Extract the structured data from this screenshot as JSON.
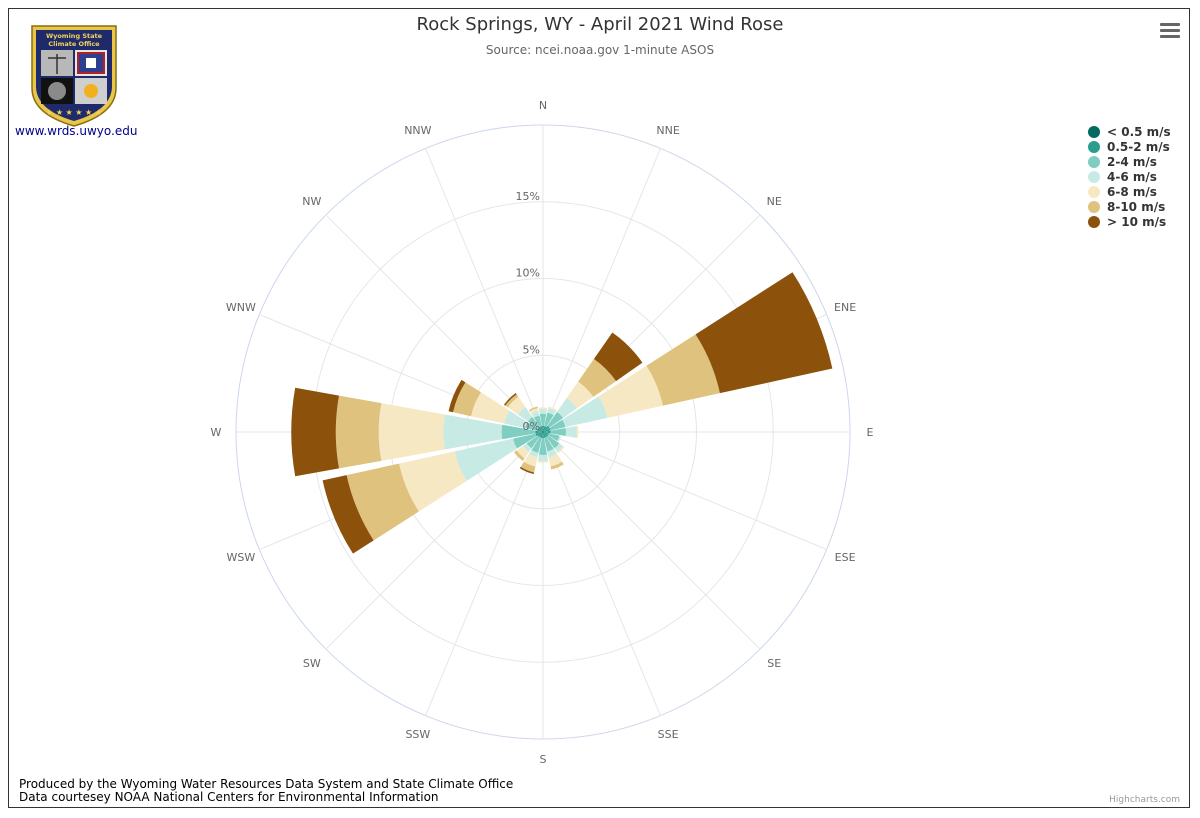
{
  "header": {
    "title": "Rock Springs, WY - April 2021 Wind Rose",
    "subtitle": "Source: ncei.noaa.gov 1-minute ASOS"
  },
  "logo": {
    "org_line1": "Wyoming State",
    "org_line2": "Climate Office",
    "link_text": "www.wrds.uwyo.edu"
  },
  "footer": {
    "line1": "Produced by the Wyoming Water Resources Data System and State Climate Office",
    "line2": "Data courtesey NOAA National Centers for Environmental Information",
    "credits": "Highcharts.com"
  },
  "menu": {
    "icon": "hamburger-menu-icon"
  },
  "chart_data": {
    "type": "bar",
    "polar": true,
    "stacked": true,
    "categories": [
      "N",
      "NNE",
      "NE",
      "ENE",
      "E",
      "ESE",
      "SE",
      "SSE",
      "S",
      "SSW",
      "SW",
      "WSW",
      "W",
      "WNW",
      "NW",
      "NNW"
    ],
    "y_ticks": [
      "0%",
      "5%",
      "10%",
      "15%"
    ],
    "ylim": [
      0,
      20
    ],
    "legend_position": "top-right",
    "series": [
      {
        "name": "< 0.5 m/s",
        "color": "#006b5e",
        "values": [
          0.1,
          0.1,
          0.1,
          0.1,
          0.1,
          0.1,
          0.1,
          0.1,
          0.1,
          0.1,
          0.1,
          0.1,
          0.1,
          0.1,
          0.1,
          0.1
        ]
      },
      {
        "name": "0.5-2 m/s",
        "color": "#2a9d8f",
        "values": [
          0.3,
          0.3,
          0.4,
          0.4,
          0.4,
          0.3,
          0.3,
          0.3,
          0.3,
          0.3,
          0.3,
          0.4,
          0.4,
          0.3,
          0.3,
          0.3
        ]
      },
      {
        "name": "2-4 m/s",
        "color": "#80cdc1",
        "values": [
          0.8,
          0.9,
          1.1,
          1.0,
          1.0,
          0.7,
          0.9,
          0.9,
          1.1,
          1.0,
          0.9,
          1.5,
          2.2,
          0.8,
          0.8,
          0.7
        ]
      },
      {
        "name": "4-6 m/s",
        "color": "#c7eae5",
        "values": [
          0.3,
          0.3,
          1.1,
          2.8,
          0.7,
          0.1,
          0.3,
          0.4,
          0.4,
          0.3,
          0.3,
          3.9,
          3.8,
          1.4,
          0.8,
          0.3
        ]
      },
      {
        "name": "6-8 m/s",
        "color": "#f6e8c3",
        "values": [
          0.1,
          0.1,
          1.3,
          3.7,
          0.1,
          0,
          0.1,
          0.6,
          0.1,
          0.6,
          0.5,
          3.7,
          4.2,
          2.2,
          0.8,
          0.2
        ]
      },
      {
        "name": "8-10 m/s",
        "color": "#dfc27d",
        "values": [
          0,
          0,
          1.8,
          3.8,
          0,
          0,
          0,
          0.2,
          0,
          0.4,
          0.2,
          3.5,
          2.8,
          1.2,
          0.2,
          0.1
        ]
      },
      {
        "name": "> 10 m/s",
        "color": "#8c510a",
        "values": [
          0,
          0,
          2.1,
          7.5,
          0,
          0,
          0,
          0,
          0,
          0.1,
          0,
          1.6,
          2.9,
          0.3,
          0.1,
          0
        ]
      }
    ]
  }
}
